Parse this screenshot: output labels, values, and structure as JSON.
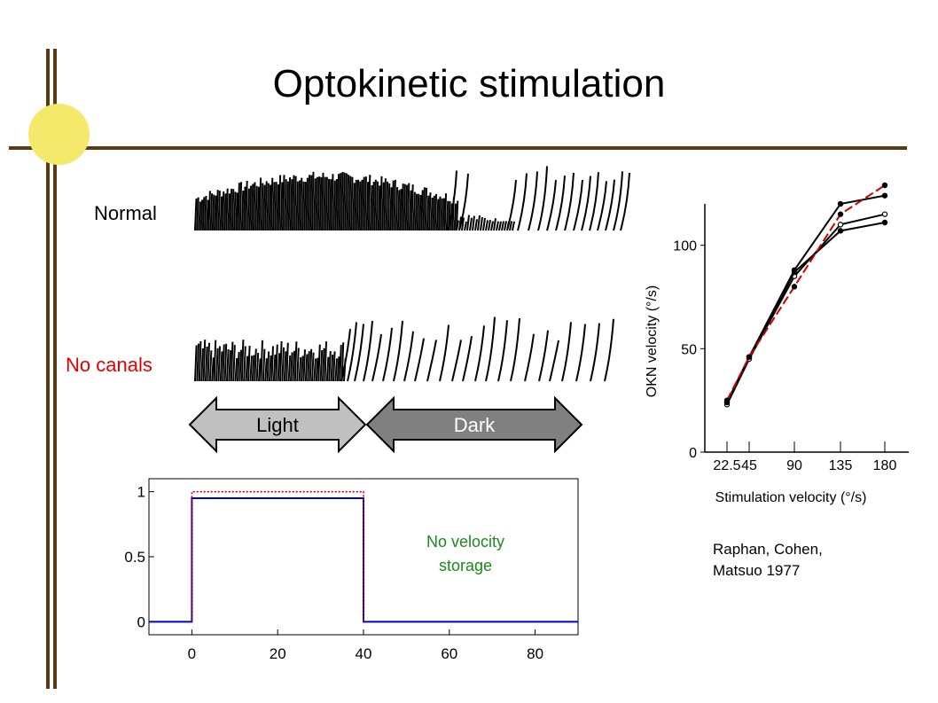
{
  "slide": {
    "title": "Optokinetic stimulation",
    "accent_colors": {
      "frame": "#5a3a12",
      "dot": "#f5e96b"
    },
    "rows": [
      {
        "label": "Normal",
        "color": "#000000"
      },
      {
        "label": "No canals",
        "color": "#e00000"
      }
    ],
    "arrows": {
      "light": "Light",
      "dark": "Dark"
    },
    "citation": [
      "Raphan, Cohen,",
      "Matsuo 1977"
    ]
  },
  "chart_data": [
    {
      "type": "line",
      "annotation": "No velocity storage",
      "x_ticks": [
        0,
        20,
        40,
        60,
        80
      ],
      "y_ticks": [
        0,
        0.5,
        1
      ],
      "xlim": [
        -10,
        90
      ],
      "ylim": [
        -0.1,
        1.1
      ],
      "series": [
        {
          "color": "#0000cc",
          "style": "solid",
          "x": [
            -10,
            0,
            0,
            40,
            40,
            90
          ],
          "y": [
            0,
            0,
            0.95,
            0.95,
            0,
            0
          ]
        },
        {
          "color": "#cc0000",
          "style": "dotted",
          "x": [
            0,
            0,
            40,
            40
          ],
          "y": [
            0,
            1,
            1,
            0
          ]
        }
      ]
    },
    {
      "type": "line",
      "xlabel": "Stimulation velocity (°/s)",
      "ylabel": "OKN velocity (°/s)",
      "x_ticks": [
        22.5,
        45,
        90,
        135,
        180
      ],
      "y_ticks": [
        0,
        50,
        100
      ],
      "ylim": [
        0,
        120
      ],
      "series": [
        {
          "color": "#000000",
          "x": [
            22.5,
            45,
            90,
            135,
            180
          ],
          "y": [
            24,
            46,
            88,
            120,
            124
          ]
        },
        {
          "color": "#000000",
          "x": [
            22.5,
            45,
            90,
            135,
            180
          ],
          "y": [
            23,
            45,
            85,
            110,
            115
          ]
        },
        {
          "color": "#000000",
          "x": [
            22.5,
            45,
            90,
            135,
            180
          ],
          "y": [
            24,
            46,
            87,
            107,
            111
          ]
        },
        {
          "color": "#cc0000",
          "x": [
            22.5,
            45,
            90,
            135,
            180
          ],
          "y": [
            25,
            46,
            80,
            115,
            129
          ]
        }
      ]
    }
  ]
}
